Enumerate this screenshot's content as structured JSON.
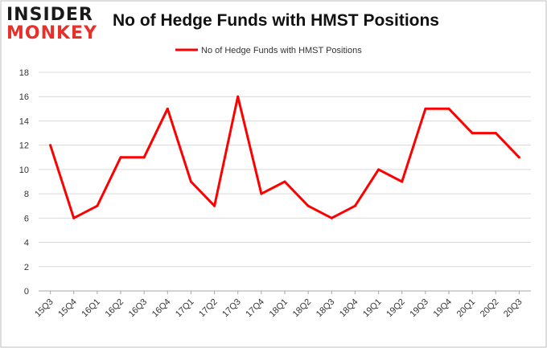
{
  "logo": {
    "line1": "INSIDER",
    "line2": "MONKEY"
  },
  "colors": {
    "series": "#ff0000",
    "grid": "#d9d9d9",
    "text": "#333333",
    "logo_red": "#e8302a",
    "border": "#bfbfbf"
  },
  "chart_data": {
    "type": "line",
    "title": "No of Hedge Funds with HMST Positions",
    "xlabel": "",
    "ylabel": "",
    "categories": [
      "15Q3",
      "15Q4",
      "16Q1",
      "16Q2",
      "16Q3",
      "16Q4",
      "17Q1",
      "17Q2",
      "17Q3",
      "17Q4",
      "18Q1",
      "18Q2",
      "18Q3",
      "18Q4",
      "19Q1",
      "19Q2",
      "19Q3",
      "19Q4",
      "20Q1",
      "20Q2",
      "20Q3"
    ],
    "series": [
      {
        "name": "No of Hedge Funds with HMST Positions",
        "values": [
          12,
          6,
          7,
          11,
          11,
          15,
          9,
          7,
          16,
          8,
          9,
          7,
          6,
          7,
          10,
          9,
          15,
          15,
          13,
          13,
          11
        ]
      }
    ],
    "ylim": [
      0,
      18
    ],
    "yticks": [
      0,
      2,
      4,
      6,
      8,
      10,
      12,
      14,
      16,
      18
    ],
    "grid": true,
    "legend": "top-center"
  }
}
